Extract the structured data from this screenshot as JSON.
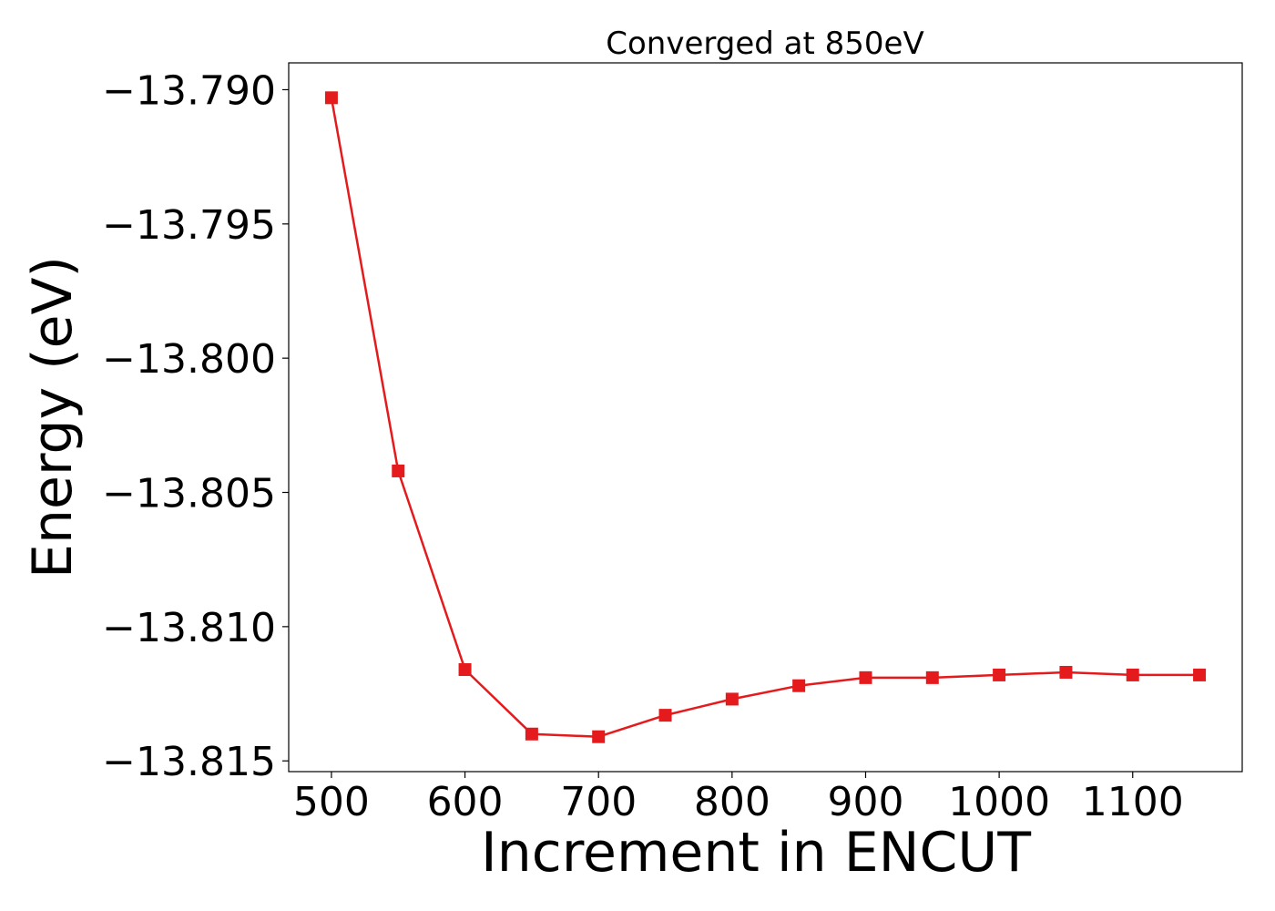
{
  "chart_data": {
    "type": "line",
    "title": "Converged at 850eV",
    "xlabel": "Increment in ENCUT",
    "ylabel": "Energy (eV)",
    "xlim": [
      468,
      1182
    ],
    "ylim": [
      -13.8154,
      -13.789
    ],
    "x_ticks": [
      500,
      600,
      700,
      800,
      900,
      1000,
      1100
    ],
    "x_tick_labels": [
      "500",
      "600",
      "700",
      "800",
      "900",
      "1000",
      "1100"
    ],
    "y_ticks": [
      -13.79,
      -13.795,
      -13.8,
      -13.805,
      -13.81,
      -13.815
    ],
    "y_tick_labels": [
      "−13.790",
      "−13.795",
      "−13.800",
      "−13.805",
      "−13.810",
      "−13.815"
    ],
    "grid": false,
    "legend": false,
    "series": [
      {
        "color": "#e41a1c",
        "marker": "square",
        "x": [
          500,
          550,
          600,
          650,
          700,
          750,
          800,
          850,
          900,
          950,
          1000,
          1050,
          1100,
          1150
        ],
        "y": [
          -13.7903,
          -13.8042,
          -13.8116,
          -13.814,
          -13.8141,
          -13.8133,
          -13.8127,
          -13.8122,
          -13.8119,
          -13.8119,
          -13.8118,
          -13.8117,
          -13.8118,
          -13.8118
        ]
      }
    ]
  }
}
